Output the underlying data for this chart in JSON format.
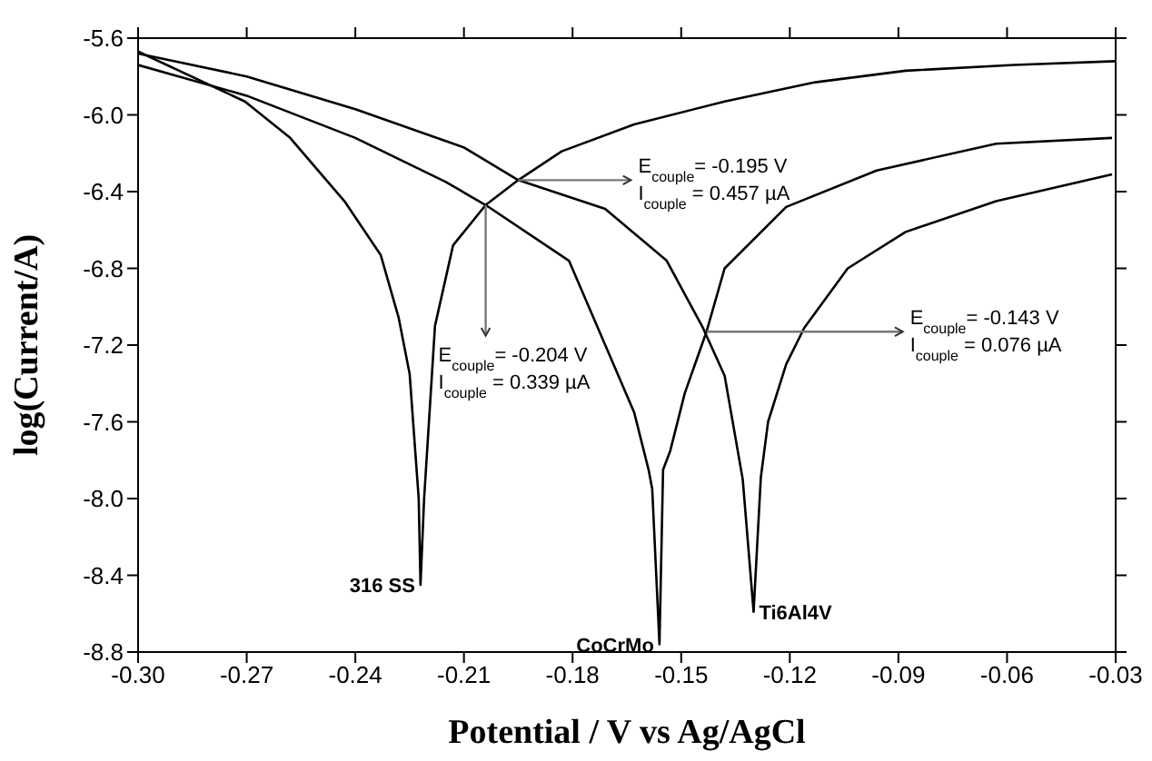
{
  "chart_data": {
    "type": "line",
    "xlabel": "Potential / V vs Ag/AgCl",
    "ylabel": "log(Current/A)",
    "xlim": [
      -0.3,
      -0.03
    ],
    "ylim": [
      -8.8,
      -5.6
    ],
    "xticks": [
      {
        "value": -0.3,
        "label": "-0.30"
      },
      -0.27,
      -0.24,
      -0.21,
      -0.18,
      -0.15,
      -0.12,
      -0.09,
      -0.06,
      -0.03
    ],
    "yticks": [
      -5.6,
      {
        "value": -6,
        "label": "-6.0"
      },
      -6.4,
      -6.8,
      -7.2,
      -7.6,
      {
        "value": -8,
        "label": "-8.0"
      },
      -8.4,
      -8.8
    ],
    "grid": false,
    "legend": false,
    "marker": "none",
    "line_style": "solid",
    "series": [
      {
        "name": "316 SS",
        "color": "#000000",
        "x": [
          -0.3,
          -0.2705,
          -0.258,
          -0.243,
          -0.233,
          -0.228,
          -0.225,
          -0.2225,
          -0.222,
          -0.221,
          -0.218,
          -0.213,
          -0.204,
          -0.195,
          -0.183,
          -0.163,
          -0.138,
          -0.113,
          -0.088,
          -0.058,
          -0.03
        ],
        "values": [
          -5.67,
          -5.93,
          -6.12,
          -6.45,
          -6.73,
          -7.06,
          -7.35,
          -8.0,
          -8.45,
          -8.0,
          -7.1,
          -6.68,
          -6.47,
          -6.34,
          -6.19,
          -6.05,
          -5.93,
          -5.83,
          -5.77,
          -5.74,
          -5.72
        ]
      },
      {
        "name": "CoCrMo",
        "color": "#000000",
        "x": [
          -0.3,
          -0.27,
          -0.24,
          -0.215,
          -0.204,
          -0.181,
          -0.163,
          -0.159,
          -0.158,
          -0.156,
          -0.155,
          -0.153,
          -0.149,
          -0.143,
          -0.138,
          -0.121,
          -0.096,
          -0.063,
          -0.031
        ],
        "values": [
          -5.74,
          -5.9,
          -6.12,
          -6.35,
          -6.47,
          -6.76,
          -7.55,
          -7.85,
          -7.95,
          -8.76,
          -7.85,
          -7.75,
          -7.45,
          -7.13,
          -6.8,
          -6.48,
          -6.29,
          -6.15,
          -6.12
        ]
      },
      {
        "name": "Ti6Al4V",
        "color": "#000000",
        "x": [
          -0.3,
          -0.27,
          -0.24,
          -0.21,
          -0.195,
          -0.171,
          -0.154,
          -0.144,
          -0.138,
          -0.133,
          -0.13,
          -0.128,
          -0.126,
          -0.121,
          -0.116,
          -0.104,
          -0.088,
          -0.063,
          -0.031
        ],
        "values": [
          -5.68,
          -5.8,
          -5.97,
          -6.17,
          -6.34,
          -6.49,
          -6.76,
          -7.11,
          -7.36,
          -7.9,
          -8.59,
          -7.89,
          -7.6,
          -7.3,
          -7.11,
          -6.8,
          -6.61,
          -6.45,
          -6.31
        ]
      }
    ],
    "annotations": [
      {
        "text": "E$_{couple}$= -0.195 V",
        "x": -0.195,
        "y": -6.34
      },
      "I$_{couple}$ = 0.457 µA",
      {
        "text": "E$_{couple}$= -0.204 V",
        "x": -0.204,
        "y": -6.47
      },
      "I$_{couple}$ = 0.339 µA",
      {
        "text": "E$_{couple}$= -0.143 V",
        "x": -0.143,
        "y": -7.13
      },
      "I$_{couple}$ = 0.076 µA"
    ]
  }
}
